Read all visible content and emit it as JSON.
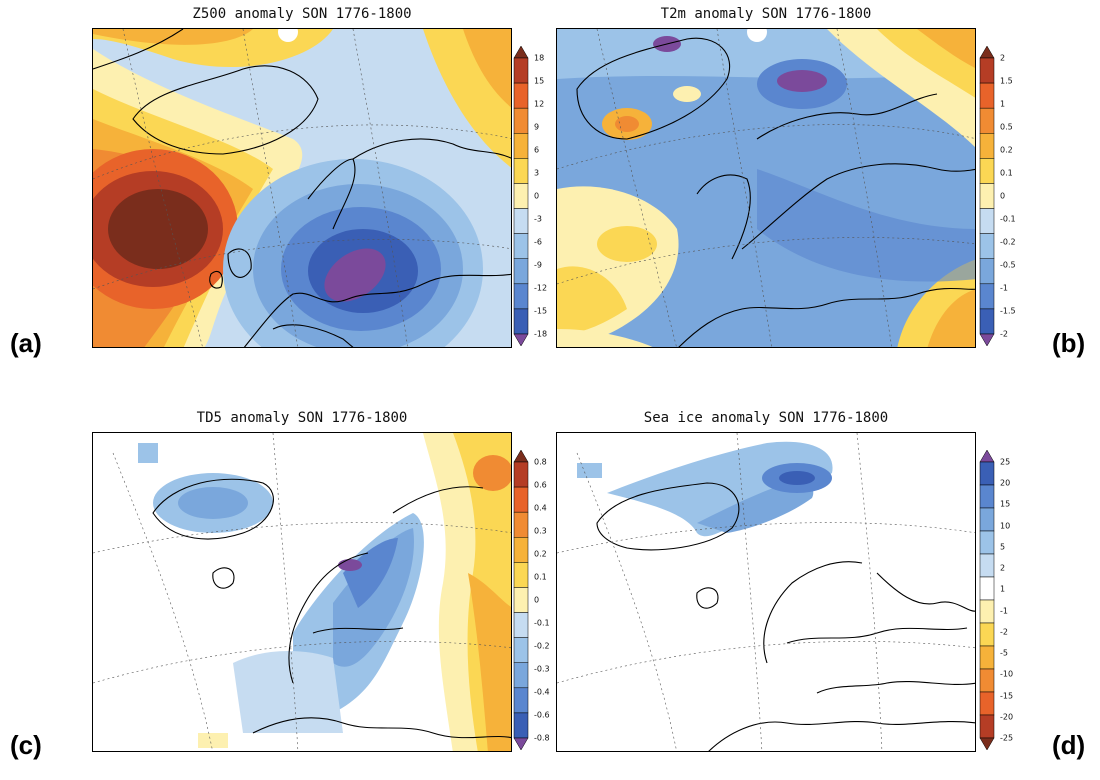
{
  "panels": [
    {
      "id": "a",
      "title": "Z500 anomaly SON 1776-1800",
      "label": "(a)",
      "colorbar": {
        "ticks": [
          "18",
          "15",
          "12",
          "9",
          "6",
          "3",
          "0",
          "-3",
          "-6",
          "-9",
          "-12",
          "-15",
          "-18"
        ],
        "colors": [
          "#7a2d1c",
          "#b53d25",
          "#e8632a",
          "#f08b33",
          "#f6b23a",
          "#fbd754",
          "#fdf0b0",
          "#c6dcf1",
          "#9cc3e8",
          "#7aa7dc",
          "#5a86cf",
          "#3a5fb5",
          "#7b4a9b"
        ]
      }
    },
    {
      "id": "b",
      "title": "T2m anomaly SON 1776-1800",
      "label": "(b)",
      "colorbar": {
        "ticks": [
          "2",
          "1.5",
          "1",
          "0.5",
          "0.2",
          "0.1",
          "0",
          "-0.1",
          "-0.2",
          "-0.5",
          "-1",
          "-1.5",
          "-2"
        ],
        "colors": [
          "#7a2d1c",
          "#b53d25",
          "#e8632a",
          "#f08b33",
          "#f6b23a",
          "#fbd754",
          "#fdf0b0",
          "#c6dcf1",
          "#9cc3e8",
          "#7aa7dc",
          "#5a86cf",
          "#3a5fb5",
          "#7b4a9b"
        ]
      }
    },
    {
      "id": "c",
      "title": "TD5 anomaly SON 1776-1800",
      "label": "(c)",
      "colorbar": {
        "ticks": [
          "0.8",
          "0.6",
          "0.4",
          "0.3",
          "0.2",
          "0.1",
          "0",
          "-0.1",
          "-0.2",
          "-0.3",
          "-0.4",
          "-0.6",
          "-0.8"
        ],
        "colors": [
          "#7a2d1c",
          "#b53d25",
          "#e8632a",
          "#f08b33",
          "#f6b23a",
          "#fbd754",
          "#fdf0b0",
          "#c6dcf1",
          "#9cc3e8",
          "#7aa7dc",
          "#5a86cf",
          "#3a5fb5",
          "#7b4a9b"
        ]
      }
    },
    {
      "id": "d",
      "title": "Sea ice anomaly SON 1776-1800",
      "label": "(d)",
      "colorbar": {
        "ticks": [
          "25",
          "20",
          "15",
          "10",
          "5",
          "2",
          "1",
          "-1",
          "-2",
          "-5",
          "-10",
          "-15",
          "-20",
          "-25"
        ],
        "colors": [
          "#7b4a9b",
          "#3a5fb5",
          "#5a86cf",
          "#7aa7dc",
          "#9cc3e8",
          "#c6dcf1",
          "#ffffff",
          "#fdf0b0",
          "#fbd754",
          "#f6b23a",
          "#f08b33",
          "#e8632a",
          "#b53d25",
          "#7a2d1c"
        ]
      }
    }
  ],
  "colors": {
    "land_outline": "#000000",
    "graticule": "#555555",
    "warm": "#e8632a",
    "cold": "#3a5fb5"
  }
}
